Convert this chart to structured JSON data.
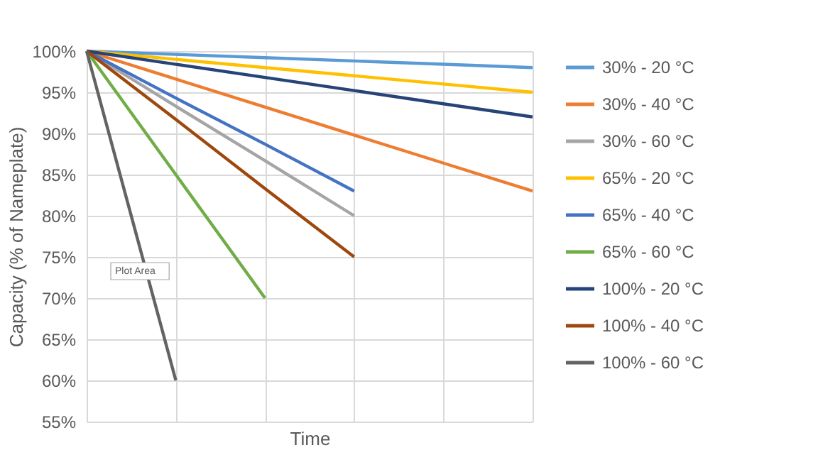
{
  "chart_data": {
    "type": "line",
    "ylabel": "Capacity (% of Nameplate)",
    "xlabel": "Time",
    "categories": [
      null,
      null,
      null,
      null,
      null,
      null
    ],
    "series": [
      {
        "name": "30% - 20 °C",
        "color": "#5b9bd5",
        "values": [
          100,
          99.6,
          99.2,
          98.8,
          98.4,
          98
        ]
      },
      {
        "name": "30% - 40 °C",
        "color": "#ed7d31",
        "values": [
          100,
          96.6,
          93.2,
          89.8,
          86.4,
          83
        ]
      },
      {
        "name": "30% - 60 °C",
        "color": "#a5a5a5",
        "values": [
          100,
          93.3,
          86.7,
          80,
          null,
          null
        ]
      },
      {
        "name": "65% - 20 °C",
        "color": "#ffc000",
        "values": [
          100,
          99,
          98,
          97,
          96,
          95
        ]
      },
      {
        "name": "65% - 40 °C",
        "color": "#4472c4",
        "values": [
          100,
          94.3,
          88.7,
          83,
          null,
          null
        ]
      },
      {
        "name": "65% - 60 °C",
        "color": "#70ad47",
        "values": [
          100,
          85,
          70,
          null,
          null,
          null
        ]
      },
      {
        "name": "100% - 20 °C",
        "color": "#264478",
        "values": [
          100,
          98.4,
          96.8,
          95.2,
          93.6,
          92
        ]
      },
      {
        "name": "100% - 40 °C",
        "color": "#9e480e",
        "values": [
          100,
          91.7,
          83.3,
          75,
          null,
          null
        ]
      },
      {
        "name": "100% - 60 °C",
        "color": "#636363",
        "values": [
          100,
          60,
          null,
          null,
          null,
          null
        ]
      }
    ],
    "ylim": [
      55,
      100
    ],
    "yticks": [
      {
        "value": 55,
        "label": "55%"
      },
      {
        "value": 60,
        "label": "60%"
      },
      {
        "value": 65,
        "label": "65%"
      },
      {
        "value": 70,
        "label": "70%"
      },
      {
        "value": 75,
        "label": "75%"
      },
      {
        "value": 80,
        "label": "80%"
      },
      {
        "value": 85,
        "label": "85%"
      },
      {
        "value": 90,
        "label": "90%"
      },
      {
        "value": 95,
        "label": "95%"
      },
      {
        "value": 100,
        "label": "100%"
      }
    ],
    "grid": true,
    "legend": "right",
    "tick_labels": "y",
    "annotations": [
      "Plot Area"
    ]
  }
}
